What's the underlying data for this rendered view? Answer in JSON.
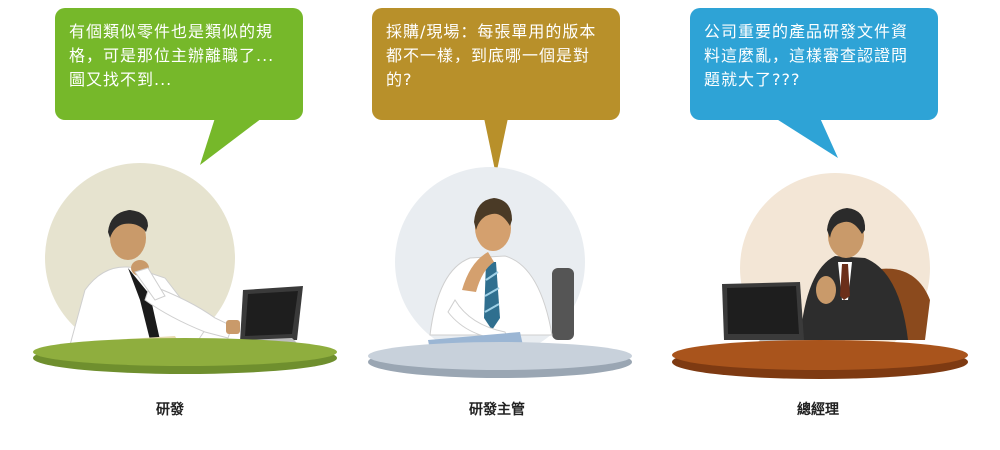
{
  "panels": [
    {
      "role": "研發",
      "quote": "有個類似零件也是類似的規格，可是那位主辦離職了...圖又找不到...",
      "bubble_color": "#76b82a",
      "table_color": "#6f8f2e",
      "circle_color": "#e6e3cf"
    },
    {
      "role": "研發主管",
      "quote": "採購/現場：每張單用的版本都不一樣，到底哪一個是對的?",
      "bubble_color": "#b8902a",
      "table_color": "#b9c3cf",
      "circle_color": "#e9edf1"
    },
    {
      "role": "總經理",
      "quote": "公司重要的產品研發文件資料這麼亂，這樣審查認證問題就大了???",
      "bubble_color": "#2ea3d6",
      "table_color": "#a9541c",
      "circle_color": "#f3e6d6"
    }
  ]
}
